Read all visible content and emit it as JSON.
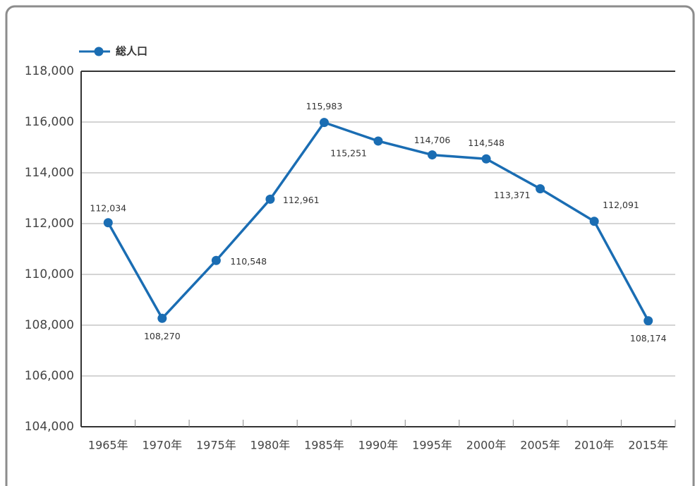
{
  "chart_data": {
    "type": "line",
    "categories": [
      "1965年",
      "1970年",
      "1975年",
      "1980年",
      "1985年",
      "1990年",
      "1995年",
      "2000年",
      "2005年",
      "2010年",
      "2015年"
    ],
    "series": [
      {
        "name": "総人口",
        "color": "#1a6db3",
        "values": [
          112034,
          108270,
          110548,
          112961,
          115983,
          115251,
          114706,
          114548,
          113371,
          112091,
          108174
        ],
        "value_labels": [
          "112,034",
          "108,270",
          "110,548",
          "112,961",
          "115,983",
          "115,251",
          "114,706",
          "114,548",
          "113,371",
          "112,091",
          "108,174"
        ]
      }
    ],
    "ylim": [
      104000,
      118000
    ],
    "yticks": [
      {
        "value": 104000,
        "label": "104,000"
      },
      {
        "value": 106000,
        "label": "106,000"
      },
      {
        "value": 108000,
        "label": "108,000"
      },
      {
        "value": 110000,
        "label": "110,000"
      },
      {
        "value": 112000,
        "label": "112,000"
      },
      {
        "value": 114000,
        "label": "114,000"
      },
      {
        "value": 116000,
        "label": "116,000"
      },
      {
        "value": 118000,
        "label": "118,000"
      }
    ],
    "grid": true,
    "legend": "top-left"
  }
}
